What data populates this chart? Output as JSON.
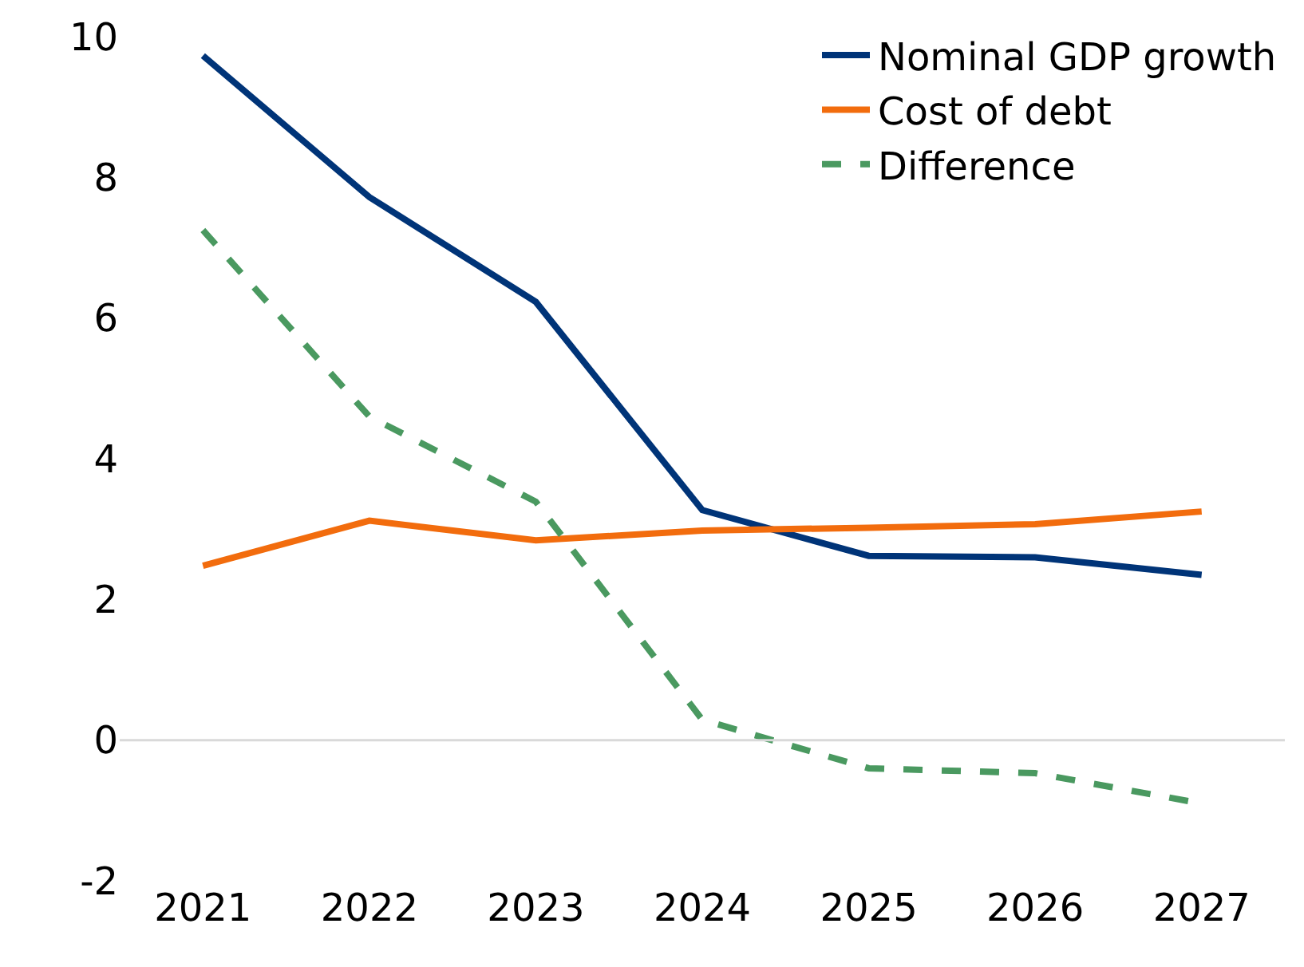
{
  "chart_data": {
    "type": "line",
    "categories": [
      "2021",
      "2022",
      "2023",
      "2024",
      "2025",
      "2026",
      "2027"
    ],
    "series": [
      {
        "name": "Nominal GDP growth",
        "color": "#003478",
        "values": [
          9.73,
          7.72,
          6.23,
          3.27,
          2.62,
          2.6,
          2.35
        ]
      },
      {
        "name": "Cost of debt",
        "color": "#f26c0d",
        "values": [
          2.48,
          3.12,
          2.84,
          2.98,
          3.02,
          3.07,
          3.25
        ]
      },
      {
        "name": "Difference",
        "color": "#4a9960",
        "line_style": "dashed",
        "values": [
          7.25,
          4.6,
          3.39,
          0.29,
          -0.4,
          -0.47,
          -0.9
        ]
      }
    ],
    "ylim": [
      -2,
      10
    ],
    "yticks": [
      -2,
      0,
      2,
      4,
      6,
      8,
      10
    ],
    "ref_lines": [
      {
        "axis": "y",
        "value": 0,
        "color": "#d9d9d9"
      }
    ],
    "grid": false,
    "legend": "top right",
    "marker": "none"
  }
}
